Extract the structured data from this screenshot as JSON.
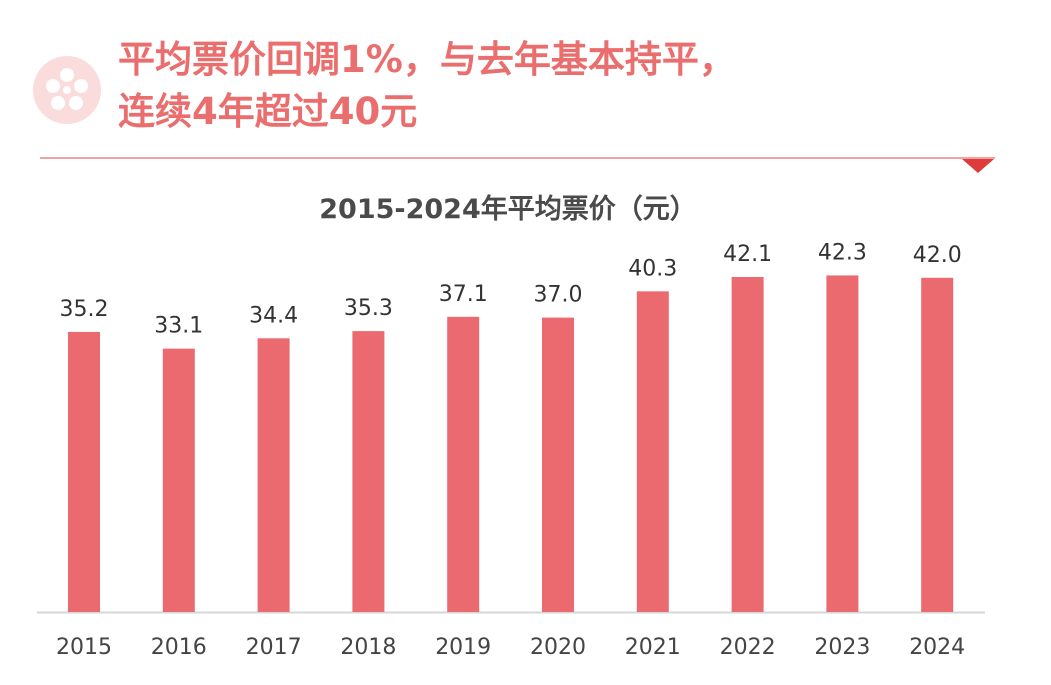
{
  "header": {
    "headline_line1": "平均票价回调1%，与去年基本持平，",
    "headline_line2": "连续4年超过40元",
    "logo_icon": "film-reel-icon",
    "accent_color": "#ea6e6e",
    "arrow_color": "#e03b3b"
  },
  "chart_data": {
    "type": "bar",
    "title": "2015-2024年平均票价（元）",
    "categories": [
      "2015",
      "2016",
      "2017",
      "2018",
      "2019",
      "2020",
      "2021",
      "2022",
      "2023",
      "2024"
    ],
    "values": [
      35.2,
      33.1,
      34.4,
      35.3,
      37.1,
      37.0,
      40.3,
      42.1,
      42.3,
      42.0
    ],
    "value_labels": [
      "35.2",
      "33.1",
      "34.4",
      "35.3",
      "37.1",
      "37.0",
      "40.3",
      "42.1",
      "42.3",
      "42.0"
    ],
    "ylim": [
      0,
      48
    ],
    "bar_color": "#ea6a70",
    "grid": false,
    "xlabel": "",
    "ylabel": ""
  }
}
